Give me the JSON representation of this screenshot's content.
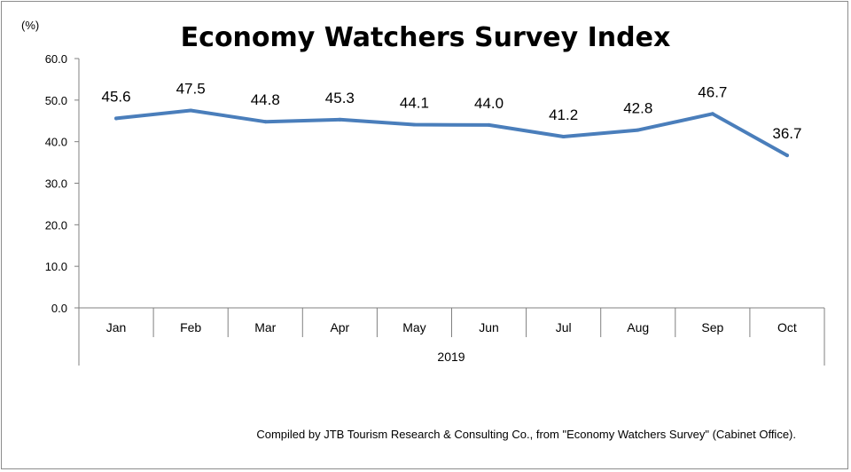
{
  "chart_data": {
    "type": "line",
    "title": "Economy Watchers Survey Index",
    "unit_label": "(%)",
    "categories": [
      "Jan",
      "Feb",
      "Mar",
      "Apr",
      "May",
      "Jun",
      "Jul",
      "Aug",
      "Sep",
      "Oct"
    ],
    "group_label": "2019",
    "series": [
      {
        "values": [
          45.6,
          47.5,
          44.8,
          45.3,
          44.1,
          44.0,
          41.2,
          42.8,
          46.7,
          36.7
        ],
        "data_labels": [
          "45.6",
          "47.5",
          "44.8",
          "45.3",
          "44.1",
          "44.0",
          "41.2",
          "42.8",
          "46.7",
          "36.7"
        ],
        "color": "#4a7ebb"
      }
    ],
    "ylim": [
      0,
      60
    ],
    "yticks": [
      0,
      10,
      20,
      30,
      40,
      50,
      60
    ],
    "ytick_labels": [
      "0.0",
      "10.0",
      "20.0",
      "30.0",
      "40.0",
      "50.0",
      "60.0"
    ],
    "grid": false,
    "legend": "none"
  },
  "source_note": "Compiled by JTB Tourism Research & Consulting Co., from \"Economy Watchers Survey\" (Cabinet Office)."
}
